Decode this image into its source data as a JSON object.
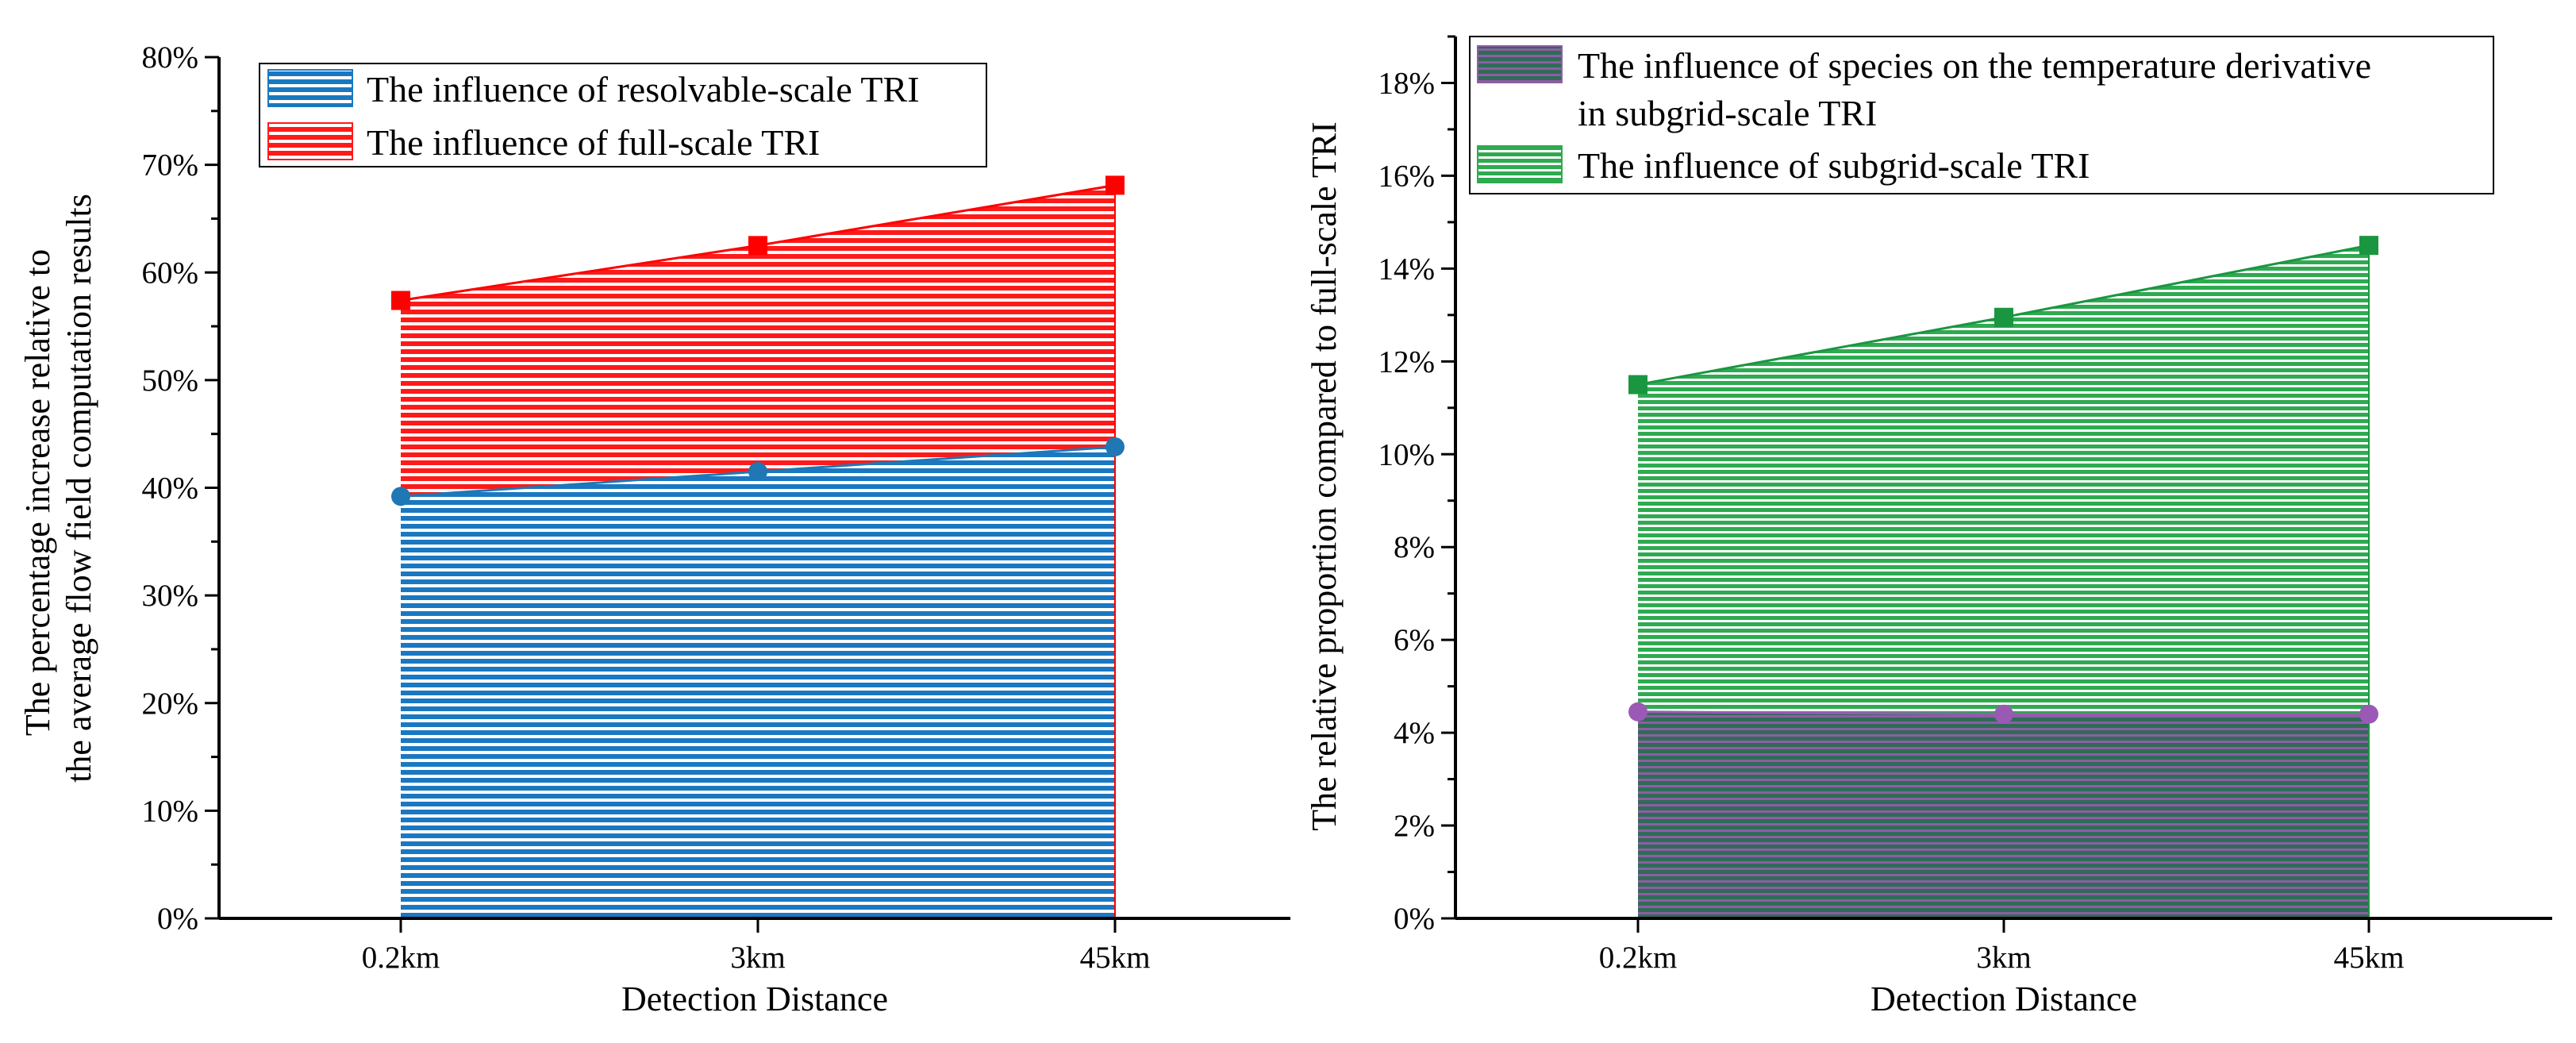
{
  "chart_data": [
    {
      "type": "area",
      "title": "",
      "xlabel": "Detection Distance",
      "ylabel_lines": [
        "The percentage increase relative to",
        "the average flow field computation results"
      ],
      "categories": [
        "0.2km",
        "3km",
        "45km"
      ],
      "ylim": [
        0,
        80
      ],
      "yticks": [
        0,
        10,
        20,
        30,
        40,
        50,
        60,
        70,
        80
      ],
      "ytick_labels": [
        "0%",
        "10%",
        "20%",
        "30%",
        "40%",
        "50%",
        "60%",
        "70%",
        "80%"
      ],
      "grid": false,
      "legend_position": "top-left",
      "series": [
        {
          "name": "The influence of resolvable-scale TRI",
          "legend_lines": [
            "The influence of resolvable-scale TRI"
          ],
          "values": [
            39.2,
            41.5,
            43.8
          ],
          "color": "#1f77b4",
          "fill_color": "#1a78c2",
          "marker": "circle"
        },
        {
          "name": "The influence of full-scale TRI",
          "legend_lines": [
            "The influence of full-scale TRI"
          ],
          "values": [
            57.4,
            62.5,
            68.1
          ],
          "color": "#ff0000",
          "fill_color": "#ff1a1a",
          "marker": "square"
        }
      ]
    },
    {
      "type": "area",
      "title": "",
      "xlabel": "Detection Distance",
      "ylabel_lines": [
        "The relative proportion compared to full-scale TRI"
      ],
      "categories": [
        "0.2km",
        "3km",
        "45km"
      ],
      "ylim": [
        0,
        19
      ],
      "yticks": [
        0,
        2,
        4,
        6,
        8,
        10,
        12,
        14,
        16,
        18
      ],
      "ytick_labels": [
        "0%",
        "2%",
        "4%",
        "6%",
        "8%",
        "10%",
        "12%",
        "14%",
        "16%",
        "18%"
      ],
      "grid": false,
      "legend_position": "top-left",
      "series": [
        {
          "name": "The influence of species on the temperature derivative in subgrid-scale TRI",
          "legend_lines": [
            "The influence of species on the temperature derivative",
            "in subgrid-scale TRI"
          ],
          "values": [
            4.45,
            4.4,
            4.4
          ],
          "color": "#9b59b6",
          "fill_color": "#3d6b5a",
          "marker": "circle"
        },
        {
          "name": "The influence of subgrid-scale TRI",
          "legend_lines": [
            "The influence of subgrid-scale TRI"
          ],
          "values": [
            11.5,
            12.95,
            14.5
          ],
          "color": "#1a9641",
          "fill_color": "#2eaa50",
          "marker": "square"
        }
      ]
    }
  ]
}
